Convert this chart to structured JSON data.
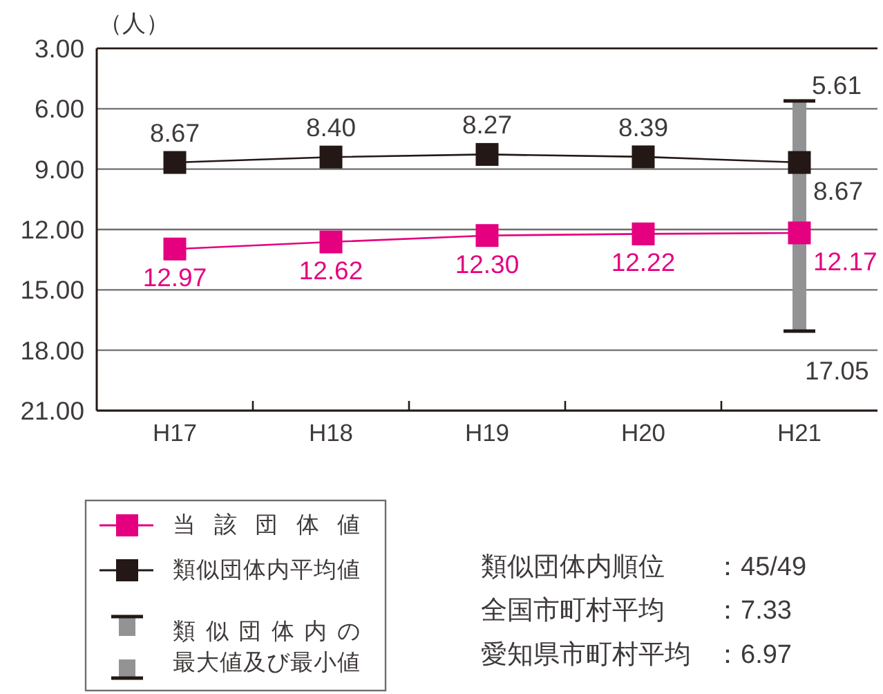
{
  "chart_data": {
    "type": "line",
    "ylabel": "（人）",
    "categories": [
      "H17",
      "H18",
      "H19",
      "H20",
      "H21"
    ],
    "ylim": [
      21,
      3
    ],
    "yticks": [
      {
        "value": 3,
        "label": "3.00"
      },
      {
        "value": 6,
        "label": "6.00"
      },
      {
        "value": 9,
        "label": "9.00"
      },
      {
        "value": 12,
        "label": "12.00"
      },
      {
        "value": 15,
        "label": "15.00"
      },
      {
        "value": 18,
        "label": "18.00"
      },
      {
        "value": 21,
        "label": "21.00"
      }
    ],
    "series": [
      {
        "name": "当該団体値",
        "color": "#e4007f",
        "values": [
          12.97,
          12.62,
          12.3,
          12.22,
          12.17
        ],
        "value_labels": [
          "12.97",
          "12.62",
          "12.30",
          "12.22",
          "12.17"
        ]
      },
      {
        "name": "類似団体内平均値",
        "color": "#231815",
        "values": [
          8.67,
          8.4,
          8.27,
          8.39,
          8.67
        ],
        "value_labels": [
          "8.67",
          "8.40",
          "8.27",
          "8.39",
          "8.67"
        ]
      },
      {
        "name": "類似団体内の最大値及び最小値",
        "type": "bar",
        "color": "#939396",
        "base": [
          null,
          null,
          null,
          null,
          5.61
        ],
        "values": [
          null,
          null,
          null,
          null,
          11.44
        ]
      }
    ],
    "annotations": [
      {
        "text": "5.61",
        "x": "H21",
        "y": 5.61
      },
      {
        "text": "17.05",
        "x": "H21",
        "y": 17.05
      },
      "類似団体内順位：45/49",
      "全国市町村平均：7.33",
      "愛知県市町村平均：6.97"
    ],
    "grid": "y",
    "legend": "bottom left",
    "marker": "square"
  }
}
